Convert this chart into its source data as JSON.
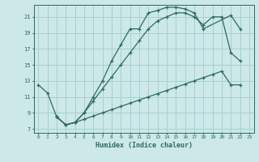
{
  "xlabel": "Humidex (Indice chaleur)",
  "bg_color": "#cce8e8",
  "grid_color": "#aacfcf",
  "line_color": "#2d6b5e",
  "xlim": [
    -0.5,
    23.5
  ],
  "ylim": [
    6.5,
    22.5
  ],
  "xticks": [
    0,
    1,
    2,
    3,
    4,
    5,
    6,
    7,
    8,
    9,
    10,
    11,
    12,
    13,
    14,
    15,
    16,
    17,
    18,
    19,
    20,
    21,
    22,
    23
  ],
  "yticks": [
    7,
    9,
    11,
    13,
    15,
    17,
    19,
    21
  ],
  "curve1_x": [
    0,
    1,
    2,
    3,
    4,
    5,
    6,
    7,
    8,
    9,
    10,
    11,
    12,
    13,
    14,
    15,
    16,
    17,
    18,
    21,
    22
  ],
  "curve1_y": [
    12.5,
    11.5,
    8.5,
    7.5,
    7.8,
    9.0,
    11.0,
    13.0,
    15.5,
    17.5,
    19.5,
    19.5,
    21.5,
    21.8,
    22.2,
    22.2,
    22.0,
    21.5,
    19.5,
    21.2,
    19.5
  ],
  "curve2_x": [
    2,
    3,
    4,
    5,
    6,
    7,
    8,
    9,
    10,
    11,
    12,
    13,
    14,
    15,
    16,
    17,
    18,
    19,
    20,
    21,
    22
  ],
  "curve2_y": [
    8.5,
    7.5,
    7.8,
    8.2,
    8.6,
    9.0,
    9.4,
    9.8,
    10.2,
    10.6,
    11.0,
    11.4,
    11.8,
    12.2,
    12.6,
    13.0,
    13.4,
    13.8,
    14.2,
    12.5,
    12.5
  ],
  "curve3_x": [
    2,
    3,
    4,
    5,
    6,
    7,
    8,
    9,
    10,
    11,
    12,
    13,
    14,
    15,
    16,
    17,
    18,
    19,
    20,
    21,
    22
  ],
  "curve3_y": [
    8.5,
    7.5,
    7.8,
    9.0,
    10.5,
    12.0,
    13.5,
    15.0,
    16.5,
    18.0,
    19.5,
    20.5,
    21.0,
    21.5,
    21.5,
    21.0,
    20.0,
    21.0,
    21.0,
    16.5,
    15.5
  ]
}
